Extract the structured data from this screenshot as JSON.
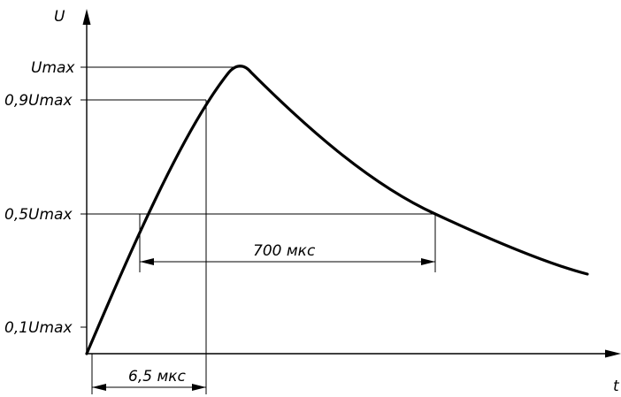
{
  "axes": {
    "y_label": "U",
    "x_label": "t"
  },
  "levels": {
    "max": "Umax",
    "p90": "0,9Umax",
    "p50": "0,5Umax",
    "p10": "0,1Umax"
  },
  "dimensions": {
    "front_time": "6,5 мкс",
    "half_time": "700 мкс"
  }
}
